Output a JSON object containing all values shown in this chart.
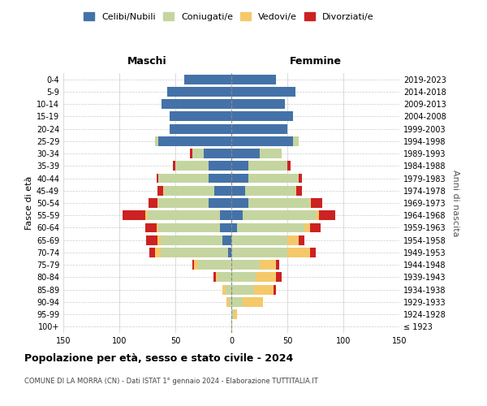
{
  "age_groups": [
    "100+",
    "95-99",
    "90-94",
    "85-89",
    "80-84",
    "75-79",
    "70-74",
    "65-69",
    "60-64",
    "55-59",
    "50-54",
    "45-49",
    "40-44",
    "35-39",
    "30-34",
    "25-29",
    "20-24",
    "15-19",
    "10-14",
    "5-9",
    "0-4"
  ],
  "birth_years": [
    "≤ 1923",
    "1924-1928",
    "1929-1933",
    "1934-1938",
    "1939-1943",
    "1944-1948",
    "1949-1953",
    "1954-1958",
    "1959-1963",
    "1964-1968",
    "1969-1973",
    "1974-1978",
    "1979-1983",
    "1984-1988",
    "1989-1993",
    "1994-1998",
    "1999-2003",
    "2004-2008",
    "2009-2013",
    "2014-2018",
    "2019-2023"
  ],
  "colors": {
    "celibi": "#4472a8",
    "coniugati": "#c5d5a0",
    "vedovi": "#f5c96a",
    "divorziati": "#cc2222"
  },
  "maschi": {
    "celibi": [
      0,
      0,
      0,
      0,
      0,
      0,
      3,
      8,
      10,
      10,
      20,
      15,
      20,
      20,
      25,
      65,
      55,
      55,
      62,
      57,
      42
    ],
    "coniugati": [
      0,
      0,
      2,
      5,
      12,
      30,
      60,
      55,
      55,
      65,
      45,
      45,
      45,
      30,
      10,
      3,
      0,
      0,
      0,
      0,
      0
    ],
    "vedovi": [
      0,
      0,
      2,
      3,
      2,
      3,
      5,
      3,
      2,
      2,
      1,
      1,
      0,
      0,
      0,
      0,
      0,
      0,
      0,
      0,
      0
    ],
    "divorziati": [
      0,
      0,
      0,
      0,
      2,
      2,
      5,
      10,
      10,
      20,
      8,
      5,
      2,
      2,
      2,
      0,
      0,
      0,
      0,
      0,
      0
    ]
  },
  "femmine": {
    "nubili": [
      0,
      0,
      0,
      0,
      0,
      0,
      0,
      0,
      5,
      10,
      15,
      12,
      15,
      15,
      25,
      55,
      50,
      55,
      48,
      57,
      40
    ],
    "coniugate": [
      0,
      2,
      10,
      20,
      22,
      25,
      50,
      50,
      60,
      65,
      55,
      45,
      45,
      35,
      20,
      5,
      0,
      0,
      0,
      0,
      0
    ],
    "vedove": [
      1,
      3,
      18,
      18,
      18,
      15,
      20,
      10,
      5,
      3,
      1,
      1,
      0,
      0,
      0,
      0,
      0,
      0,
      0,
      0,
      0
    ],
    "divorziate": [
      0,
      0,
      0,
      2,
      5,
      3,
      5,
      5,
      10,
      15,
      10,
      5,
      3,
      3,
      0,
      0,
      0,
      0,
      0,
      0,
      0
    ]
  },
  "xlim": 150,
  "title": "Popolazione per età, sesso e stato civile - 2024",
  "subtitle": "COMUNE DI LA MORRA (CN) - Dati ISTAT 1° gennaio 2024 - Elaborazione TUTTITALIA.IT",
  "ylabel_left": "Fasce di età",
  "ylabel_right": "Anni di nascita",
  "xlabel_left": "Maschi",
  "xlabel_right": "Femmine",
  "legend_labels": [
    "Celibi/Nubili",
    "Coniugati/e",
    "Vedovi/e",
    "Divorziati/e"
  ],
  "bg_color": "#ffffff",
  "grid_color": "#cccccc"
}
